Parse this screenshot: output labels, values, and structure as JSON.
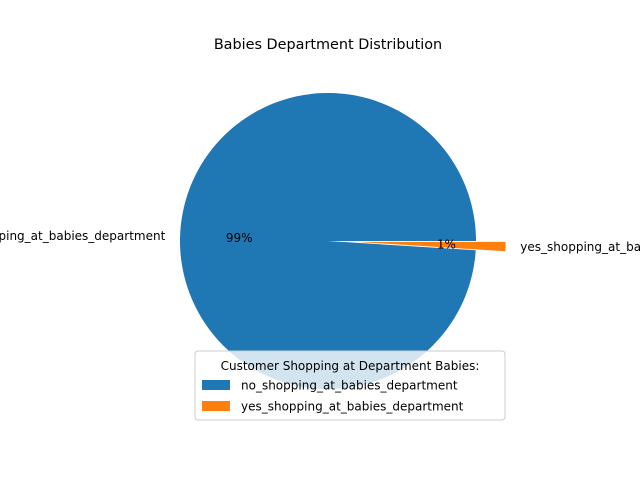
{
  "chart_data": {
    "type": "pie",
    "title": "Babies Department Distribution",
    "slices": [
      {
        "label": "no_shopping_at_babies_department",
        "value": 99,
        "pct_label": "99%",
        "color": "#1f77b4"
      },
      {
        "label": "yes_shopping_at_babies_department",
        "value": 1,
        "pct_label": "1%",
        "color": "#ff7f0e"
      }
    ],
    "legend": {
      "title": "Customer Shopping at Department Babies:",
      "placement": "lower-center",
      "entries": [
        "no_shopping_at_babies_department",
        "yes_shopping_at_babies_department"
      ]
    },
    "explode": [
      0,
      0.2
    ]
  }
}
